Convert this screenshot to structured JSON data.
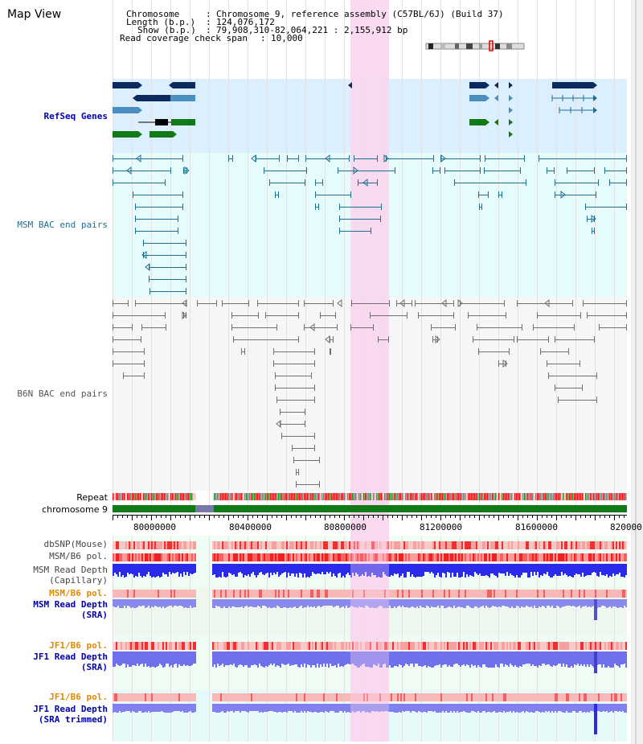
{
  "header": {
    "title": "Map View",
    "chromosome_label": "Chromosome",
    "chromosome_value": "Chromosome 9, reference assembly (C57BL/6J) (Build 37)",
    "length_label": "Length (b.p.)",
    "length_value": "124,076,172",
    "show_label": "Show (b.p.)",
    "show_value": "79,908,310-82,064,221 : 2,155,912 bp",
    "coverage_label": "Read coverage check span",
    "coverage_value": "10,000"
  },
  "tracks": {
    "refseq": "RefSeq Genes",
    "msm_bac": "MSM BAC end pairs",
    "b6n_bac": "B6N BAC end pairs",
    "repeat": "Repeat",
    "chromosome": "chromosome 9",
    "dbsnp": "dbSNP(Mouse)",
    "msm_b6_pol": "MSM/B6 pol.",
    "msm_depth_cap_1": "MSM Read Depth",
    "msm_depth_cap_2": "(Capillary)",
    "msm_b6_pol_2": "MSM/B6 pol.",
    "msm_depth_sra_1": "MSM Read Depth",
    "msm_depth_sra_2": "(SRA)",
    "jf1_b6_pol": "JF1/B6 pol.",
    "jf1_depth_sra_1": "JF1 Read Depth",
    "jf1_depth_sra_2": "(SRA)",
    "jf1_b6_pol_2": "JF1/B6 pol.",
    "jf1_depth_trim_1": "JF1 Read Depth",
    "jf1_depth_trim_2": "(SRA trimmed)"
  },
  "axis": {
    "ticks": [
      "80000000",
      "80400000",
      "80800000",
      "81200000",
      "81600000",
      "820000"
    ]
  },
  "colors": {
    "refseq_bg": "#dcefff",
    "msm_bg": "#e6fcfc",
    "b6n_bg": "#f6f6f6",
    "highlight": "#f9d6f0",
    "dark_navy": "#0d2b5e",
    "steel_blue": "#4a8fbf",
    "green": "#0f7a16",
    "teal": "#1f6f8f",
    "gray": "#707070",
    "chrom_green": "#0f7a16",
    "depth_blue": "#2a2ae8",
    "label_blue": "#0000aa",
    "label_orange": "#e08a00"
  }
}
